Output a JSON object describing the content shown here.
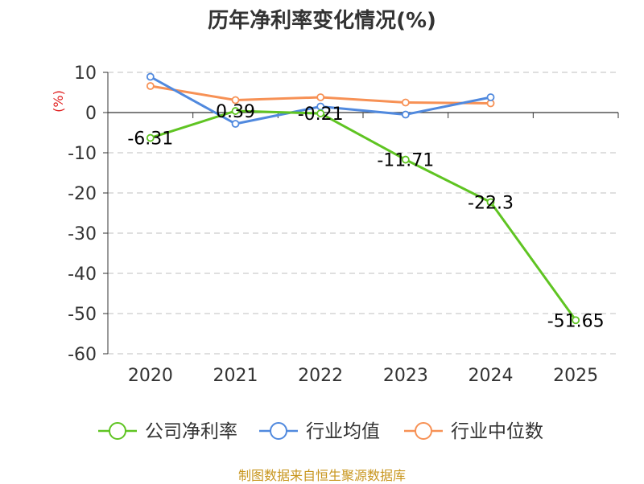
{
  "title": "历年净利率变化情况(%)",
  "footer": "制图数据来自恒生聚源数据库",
  "chart_data": {
    "type": "line",
    "title": "历年净利率变化情况(%)",
    "xlabel": "",
    "ylabel": "(%)",
    "categories": [
      "2020",
      "2021",
      "2022",
      "2023",
      "2024",
      "2025"
    ],
    "ylim": [
      -60,
      10
    ],
    "yticks": [
      10,
      0,
      -10,
      -20,
      -30,
      -40,
      -50,
      -60
    ],
    "grid": true,
    "legend_position": "bottom",
    "series": [
      {
        "name": "公司净利率",
        "color": "#5fc422",
        "values": [
          -6.31,
          0.39,
          -0.21,
          -11.71,
          -22.3,
          -51.65
        ],
        "labels": [
          "-6.31",
          "0.39",
          "-0.21",
          "-11.71",
          "-22.3",
          "-51.65"
        ]
      },
      {
        "name": "行业均值",
        "color": "#5089de",
        "values": [
          8.9,
          -2.8,
          1.5,
          -0.5,
          3.8,
          null
        ]
      },
      {
        "name": "行业中位数",
        "color": "#f79155",
        "values": [
          6.6,
          3.1,
          3.8,
          2.5,
          2.3,
          null
        ]
      }
    ]
  }
}
